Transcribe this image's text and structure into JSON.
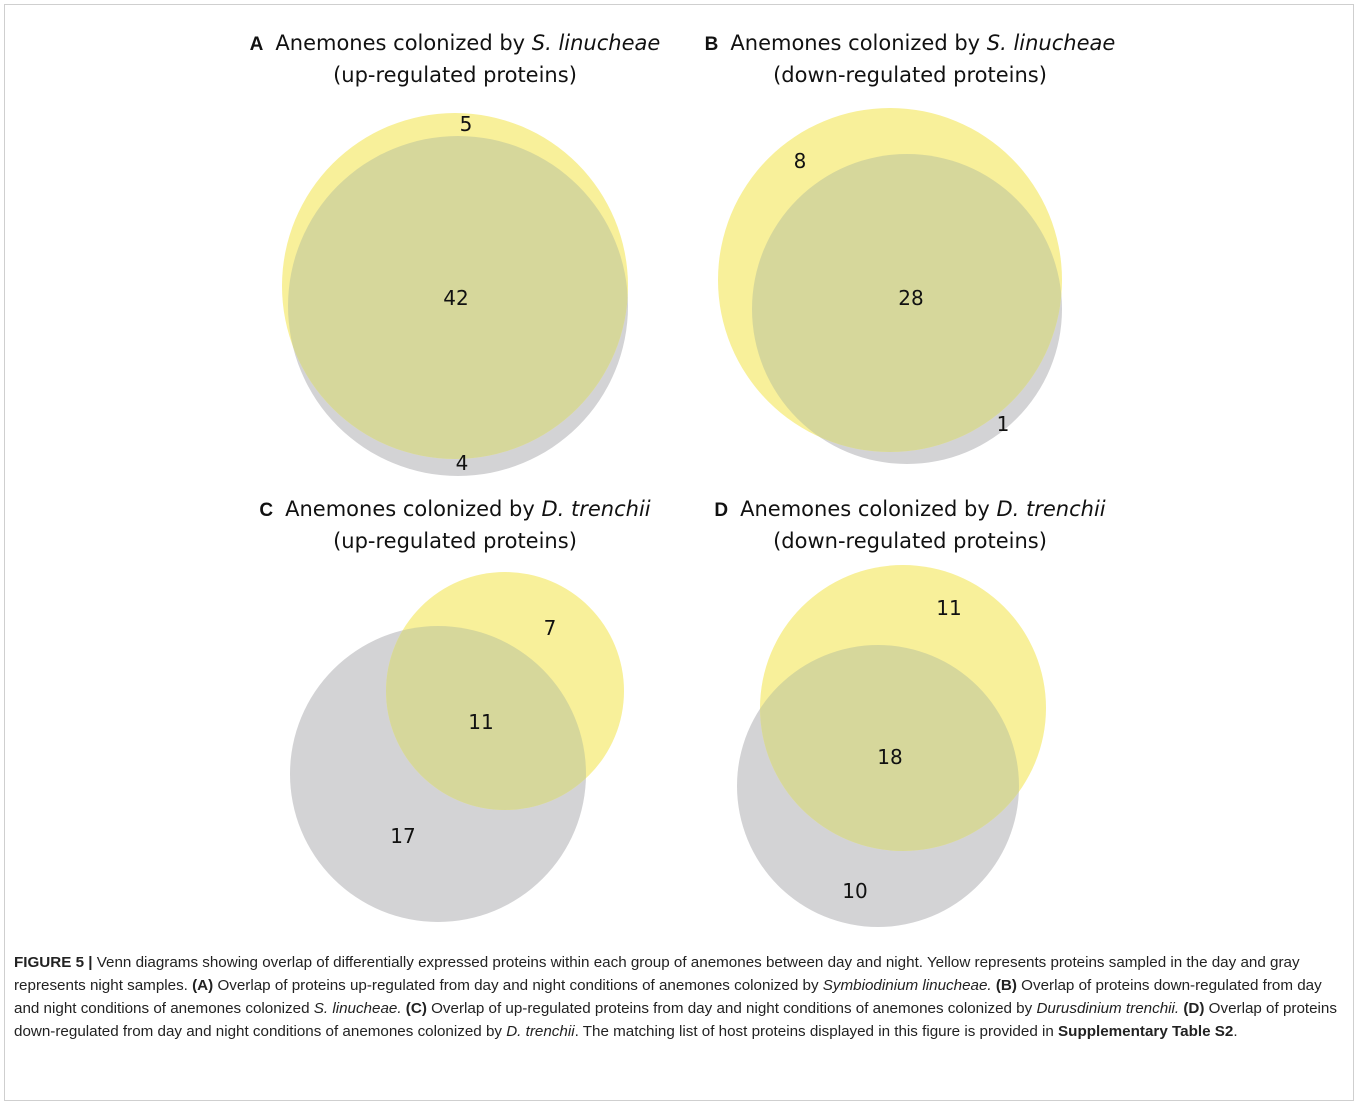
{
  "colors": {
    "day_yellow": "#f8f09a",
    "night_gray": "#d3d3d5",
    "overlap": "#d6d79b"
  },
  "panels": [
    {
      "letter": "A",
      "title_pre": "Anemones colonized by ",
      "title_species": "S. linucheae",
      "subtitle": "(up-regulated proteins)",
      "counts": {
        "day_only": "5",
        "both": "42",
        "night_only": "4"
      }
    },
    {
      "letter": "B",
      "title_pre": "Anemones colonized by ",
      "title_species": "S. linucheae",
      "subtitle": "(down-regulated proteins)",
      "counts": {
        "day_only": "8",
        "both": "28",
        "night_only": "1"
      }
    },
    {
      "letter": "C",
      "title_pre": "Anemones colonized by ",
      "title_species": "D. trenchii",
      "subtitle": "(up-regulated proteins)",
      "counts": {
        "day_only": "7",
        "both": "11",
        "night_only": "17"
      }
    },
    {
      "letter": "D",
      "title_pre": "Anemones colonized by ",
      "title_species": "D. trenchii",
      "subtitle": "(down-regulated proteins)",
      "counts": {
        "day_only": "11",
        "both": "18",
        "night_only": "10"
      }
    }
  ],
  "caption": {
    "figure_label": "FIGURE 5 |",
    "t1": " Venn diagrams showing overlap of differentially expressed proteins within each group of anemones between day and night. Yellow represents proteins sampled in the day and gray represents night samples. ",
    "a_label": "(A)",
    "t2": " Overlap of proteins up-regulated from day and night conditions of anemones colonized by ",
    "a_species": "Symbiodinium linucheae.",
    "t3": " ",
    "b_label": "(B)",
    "t4": " Overlap of proteins down-regulated from day and night conditions of anemones colonized ",
    "b_species": "S. linucheae.",
    "t5": " ",
    "c_label": "(C)",
    "t6": " Overlap of up-regulated proteins from day and night conditions of anemones colonized by ",
    "c_species": "Durusdinium trenchii.",
    "t7": " ",
    "d_label": "(D)",
    "t8": " Overlap of proteins down-regulated from day and night conditions of anemones colonized by ",
    "d_species": "D. trenchii",
    "t9": ". The matching list of host proteins displayed in this figure is provided in ",
    "supp": "Supplementary Table S2",
    "t10": "."
  }
}
